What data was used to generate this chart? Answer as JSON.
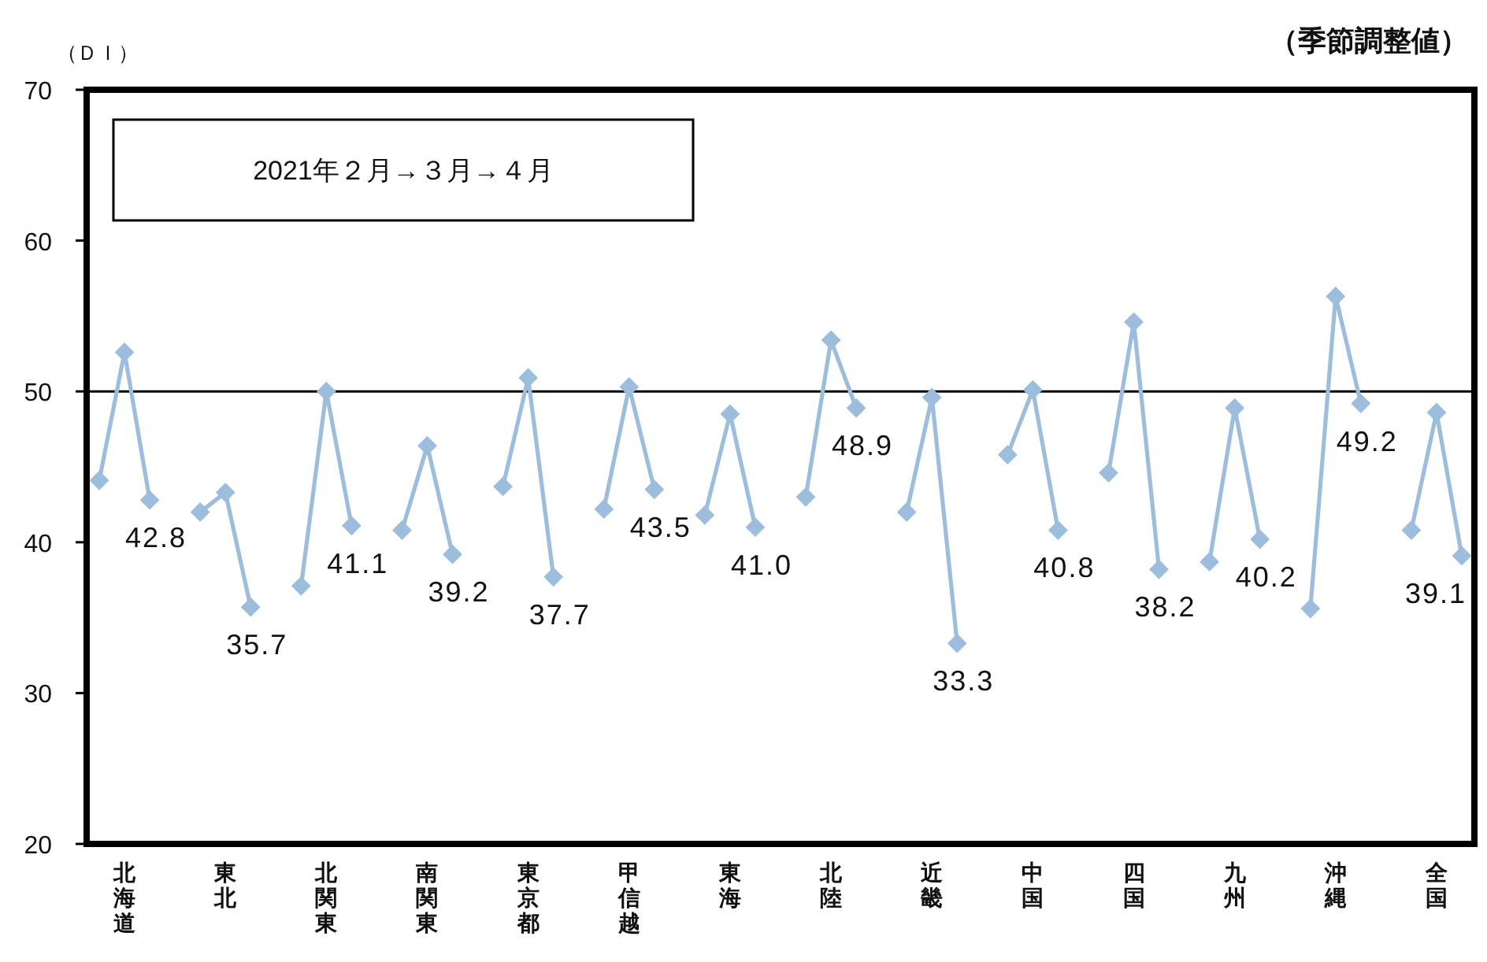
{
  "chart_data": {
    "type": "line",
    "subtitle": "（季節調整値）",
    "ylabel": "（ＤＩ）",
    "annotations": [
      "2021年２月→３月→４月"
    ],
    "categories": [
      null,
      "北海道",
      null,
      null,
      null,
      "東北",
      null,
      null,
      null,
      "北関東",
      null,
      null,
      null,
      "南関東",
      null,
      null,
      null,
      "東京都",
      null,
      null,
      null,
      "甲信越",
      null,
      null,
      null,
      "東海",
      null,
      null,
      null,
      "北陸",
      null,
      null,
      null,
      "近畿",
      null,
      null,
      null,
      "中国",
      null,
      null,
      null,
      "四国",
      null,
      null,
      null,
      "九州",
      null,
      null,
      null,
      "沖縄",
      null,
      null,
      null,
      "全国",
      null
    ],
    "ylim": [
      20,
      70
    ],
    "yticks": [
      20,
      30,
      40,
      50,
      60,
      70
    ],
    "marker": "diamond",
    "ref_lines": [
      {
        "axis": "y",
        "value": 50,
        "color": "#000000"
      }
    ],
    "series": [
      {
        "color": "#9dbddd",
        "values": [
          44.1,
          52.6,
          42.8,
          null,
          42.0,
          43.3,
          35.7,
          null,
          37.1,
          50.0,
          41.1,
          null,
          40.8,
          46.4,
          39.2,
          null,
          43.7,
          50.9,
          37.7,
          null,
          42.2,
          50.3,
          43.5,
          null,
          41.8,
          48.5,
          41.0,
          null,
          43.0,
          53.4,
          48.9,
          null,
          42.0,
          49.6,
          33.3,
          null,
          45.8,
          50.1,
          40.8,
          null,
          44.6,
          54.6,
          38.2,
          null,
          38.7,
          48.9,
          40.2,
          null,
          35.6,
          56.3,
          49.2,
          null,
          40.8,
          48.6,
          39.1
        ],
        "value_labels": [
          null,
          null,
          "42.8",
          null,
          null,
          null,
          "35.7",
          null,
          null,
          null,
          "41.1",
          null,
          null,
          null,
          "39.2",
          null,
          null,
          null,
          "37.7",
          null,
          null,
          null,
          "43.5",
          null,
          null,
          null,
          "41.0",
          null,
          null,
          null,
          "48.9",
          null,
          null,
          null,
          "33.3",
          null,
          null,
          null,
          "40.8",
          null,
          null,
          null,
          "38.2",
          null,
          null,
          null,
          "40.2",
          null,
          null,
          null,
          "49.2",
          null,
          null,
          null,
          "39.1"
        ]
      }
    ]
  }
}
